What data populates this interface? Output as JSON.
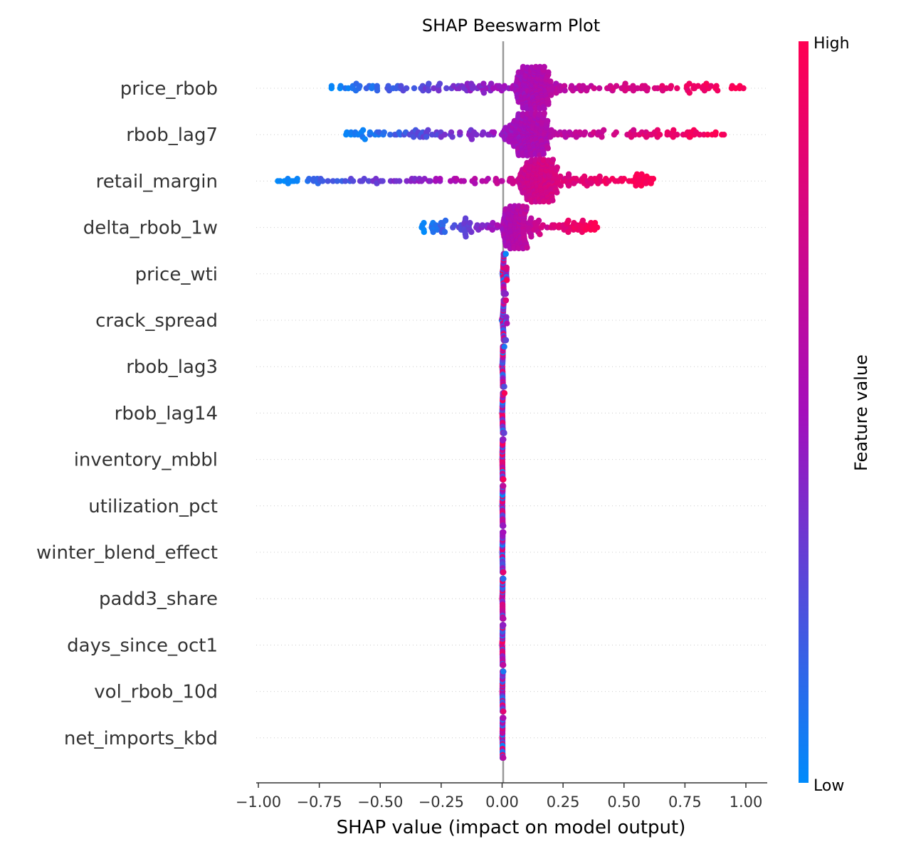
{
  "chart_data": {
    "type": "scatter",
    "subtype": "beeswarm",
    "title": "SHAP Beeswarm Plot",
    "xlabel": "SHAP value (impact on model output)",
    "ylabel": "",
    "xlim": [
      -1.05,
      1.08
    ],
    "xticks": [
      -1.0,
      -0.75,
      -0.5,
      -0.25,
      0.0,
      0.25,
      0.5,
      0.75,
      1.0
    ],
    "xtick_labels": [
      "−1.00",
      "−0.75",
      "−0.50",
      "−0.25",
      "0.00",
      "0.25",
      "0.50",
      "0.75",
      "1.00"
    ],
    "zero_line": 0.0,
    "grid": "dotted horizontal guide per feature",
    "features": [
      {
        "name": "price_rbob",
        "shap_min": -0.7,
        "shap_max": 0.99,
        "core": 0.13,
        "peak_width": 0.3
      },
      {
        "name": "rbob_lag7",
        "shap_min": -0.64,
        "shap_max": 0.91,
        "core": 0.11,
        "peak_width": 0.3
      },
      {
        "name": "retail_margin",
        "shap_min": -0.92,
        "shap_max": 0.62,
        "core": 0.15,
        "peak_width": 0.27
      },
      {
        "name": "delta_rbob_1w",
        "shap_min": -0.33,
        "shap_max": 0.39,
        "core": 0.05,
        "peak_width": 0.17
      },
      {
        "name": "price_wti",
        "shap_min": -0.02,
        "shap_max": 0.02,
        "core": 0.01,
        "peak_width": 0.05
      },
      {
        "name": "crack_spread",
        "shap_min": -0.02,
        "shap_max": 0.02,
        "core": 0.01,
        "peak_width": 0.05
      },
      {
        "name": "rbob_lag3",
        "shap_min": -0.01,
        "shap_max": 0.01,
        "core": 0.005,
        "peak_width": 0.05
      },
      {
        "name": "rbob_lag14",
        "shap_min": -0.01,
        "shap_max": 0.01,
        "core": 0.005,
        "peak_width": 0.05
      },
      {
        "name": "inventory_mbbl",
        "shap_min": -0.005,
        "shap_max": 0.005,
        "core": 0.003,
        "peak_width": 0.05
      },
      {
        "name": "utilization_pct",
        "shap_min": -0.005,
        "shap_max": 0.005,
        "core": 0.003,
        "peak_width": 0.05
      },
      {
        "name": "winter_blend_effect",
        "shap_min": -0.005,
        "shap_max": 0.005,
        "core": 0.003,
        "peak_width": 0.05
      },
      {
        "name": "padd3_share",
        "shap_min": -0.005,
        "shap_max": 0.005,
        "core": 0.003,
        "peak_width": 0.05
      },
      {
        "name": "days_since_oct1",
        "shap_min": -0.005,
        "shap_max": 0.005,
        "core": 0.003,
        "peak_width": 0.05
      },
      {
        "name": "vol_rbob_10d",
        "shap_min": -0.005,
        "shap_max": 0.005,
        "core": 0.003,
        "peak_width": 0.05
      },
      {
        "name": "net_imports_kbd",
        "shap_min": -0.005,
        "shap_max": 0.005,
        "core": 0.003,
        "peak_width": 0.05
      }
    ],
    "colorbar": {
      "title": "Feature value",
      "high_label": "High",
      "low_label": "Low",
      "low_color": "#008bfb",
      "mid_color": "#a40ebb",
      "high_color": "#ff0052"
    },
    "colors": {
      "zero_line": "#999999",
      "axis": "#333333",
      "guide": "#cccccc"
    }
  }
}
